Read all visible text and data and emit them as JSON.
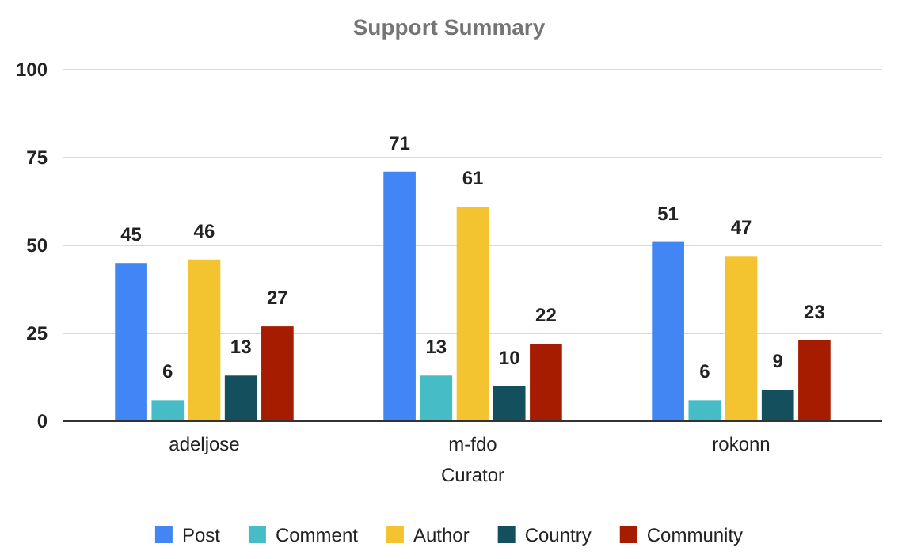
{
  "chart_data": {
    "type": "bar",
    "title": "Support Summary",
    "xlabel": "Curator",
    "categories": [
      "adeljose",
      "m-fdo",
      "rokonn"
    ],
    "series": [
      {
        "name": "Post",
        "color": "#4285f4",
        "values": [
          45,
          71,
          51
        ]
      },
      {
        "name": "Comment",
        "color": "#46bdc6",
        "values": [
          6,
          13,
          6
        ]
      },
      {
        "name": "Author",
        "color": "#f4c430",
        "values": [
          46,
          61,
          47
        ]
      },
      {
        "name": "Country",
        "color": "#134f5c",
        "values": [
          13,
          10,
          9
        ]
      },
      {
        "name": "Community",
        "color": "#a61c00",
        "values": [
          27,
          22,
          23
        ]
      }
    ],
    "ylim": [
      0,
      100
    ],
    "yticks": [
      0,
      25,
      50,
      75,
      100
    ],
    "grid": "y",
    "legend": "bottom",
    "data_labels": true
  }
}
